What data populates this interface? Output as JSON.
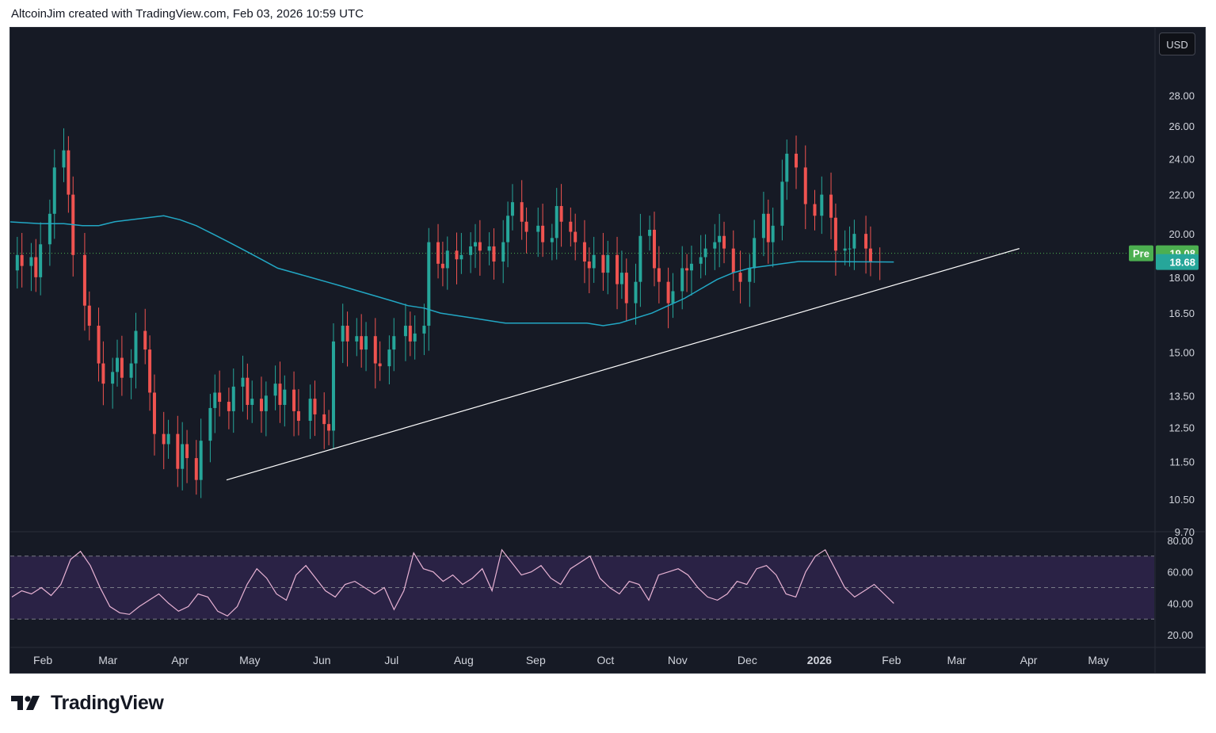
{
  "header": {
    "caption": "AltcoinJim created with TradingView.com, Feb 03, 2026 10:59 UTC"
  },
  "toolbar": {
    "currency_label": "USD"
  },
  "footer": {
    "brand": "TradingView"
  },
  "colors": {
    "background": "#161a25",
    "up_candle": "#26a69a",
    "down_candle": "#ef5350",
    "moving_average": "#22a7c4",
    "trendline": "#ffffff",
    "rsi_line": "#e8b3d4",
    "rsi_band": "#2a2245",
    "pre_badge": "#4caf50",
    "last_badge": "#26a69a",
    "axis_text": "#d1d4dc"
  },
  "chart_data": [
    {
      "type": "candlestick",
      "scale": "log",
      "x_range": [
        "2025-01-18",
        "2026-05-25"
      ],
      "ylim": [
        9.7,
        33
      ],
      "y_ticks": [
        "28.00",
        "26.00",
        "24.00",
        "22.00",
        "20.00",
        "18.00",
        "16.50",
        "15.00",
        "13.50",
        "12.50",
        "11.50",
        "10.50",
        "9.70"
      ],
      "x_ticks": [
        {
          "date": "2025-02-01",
          "label": "Feb",
          "bold": false
        },
        {
          "date": "2025-03-01",
          "label": "Mar",
          "bold": false
        },
        {
          "date": "2025-04-01",
          "label": "Apr",
          "bold": false
        },
        {
          "date": "2025-05-01",
          "label": "May",
          "bold": false
        },
        {
          "date": "2025-06-01",
          "label": "Jun",
          "bold": false
        },
        {
          "date": "2025-07-01",
          "label": "Jul",
          "bold": false
        },
        {
          "date": "2025-08-01",
          "label": "Aug",
          "bold": false
        },
        {
          "date": "2025-09-01",
          "label": "Sep",
          "bold": false
        },
        {
          "date": "2025-10-01",
          "label": "Oct",
          "bold": false
        },
        {
          "date": "2025-11-01",
          "label": "Nov",
          "bold": false
        },
        {
          "date": "2025-12-01",
          "label": "Dec",
          "bold": false
        },
        {
          "date": "2026-01-01",
          "label": "2026",
          "bold": true
        },
        {
          "date": "2026-02-01",
          "label": "Feb",
          "bold": false
        },
        {
          "date": "2026-03-01",
          "label": "Mar",
          "bold": false
        },
        {
          "date": "2026-04-01",
          "label": "Apr",
          "bold": false
        },
        {
          "date": "2026-05-01",
          "label": "May",
          "bold": false
        }
      ],
      "candle_dates": [
        "2025-01-17",
        "2025-01-21",
        "2025-01-23",
        "2025-01-27",
        "2025-01-29",
        "2025-01-31",
        "2025-02-04",
        "2025-02-06",
        "2025-02-10",
        "2025-02-12",
        "2025-02-14",
        "2025-02-19",
        "2025-02-21",
        "2025-02-25",
        "2025-02-27",
        "2025-03-03",
        "2025-03-05",
        "2025-03-07",
        "2025-03-11",
        "2025-03-13",
        "2025-03-17",
        "2025-03-19",
        "2025-03-21",
        "2025-03-25",
        "2025-03-27",
        "2025-03-31",
        "2025-04-02",
        "2025-04-04",
        "2025-04-08",
        "2025-04-10",
        "2025-04-14",
        "2025-04-16",
        "2025-04-18",
        "2025-04-22",
        "2025-04-24",
        "2025-04-28",
        "2025-04-30",
        "2025-05-02",
        "2025-05-06",
        "2025-05-08",
        "2025-05-12",
        "2025-05-14",
        "2025-05-16",
        "2025-05-20",
        "2025-05-22",
        "2025-05-27",
        "2025-05-29",
        "2025-06-02",
        "2025-06-04",
        "2025-06-06",
        "2025-06-10",
        "2025-06-12",
        "2025-06-16",
        "2025-06-18",
        "2025-06-20",
        "2025-06-24",
        "2025-06-26",
        "2025-06-30",
        "2025-07-02",
        "2025-07-07",
        "2025-07-09",
        "2025-07-11",
        "2025-07-15",
        "2025-07-17",
        "2025-07-21",
        "2025-07-23",
        "2025-07-25",
        "2025-07-29",
        "2025-07-31",
        "2025-08-04",
        "2025-08-06",
        "2025-08-08",
        "2025-08-12",
        "2025-08-14",
        "2025-08-18",
        "2025-08-20",
        "2025-08-22",
        "2025-08-26",
        "2025-08-28",
        "2025-09-02",
        "2025-09-04",
        "2025-09-08",
        "2025-09-10",
        "2025-09-12",
        "2025-09-16",
        "2025-09-18",
        "2025-09-22",
        "2025-09-24",
        "2025-09-26",
        "2025-09-30",
        "2025-10-02",
        "2025-10-06",
        "2025-10-08",
        "2025-10-10",
        "2025-10-14",
        "2025-10-16",
        "2025-10-20",
        "2025-10-22",
        "2025-10-24",
        "2025-10-28",
        "2025-10-30",
        "2025-11-03",
        "2025-11-05",
        "2025-11-07",
        "2025-11-11",
        "2025-11-13",
        "2025-11-17",
        "2025-11-19",
        "2025-11-21",
        "2025-11-25",
        "2025-11-28",
        "2025-12-02",
        "2025-12-04",
        "2025-12-08",
        "2025-12-10",
        "2025-12-12",
        "2025-12-16",
        "2025-12-18",
        "2025-12-22",
        "2025-12-26",
        "2025-12-30",
        "2026-01-02",
        "2026-01-06",
        "2026-01-08",
        "2026-01-12",
        "2026-01-14",
        "2026-01-16",
        "2026-01-21",
        "2026-01-23",
        "2026-01-27",
        "2026-01-29",
        "2026-02-02"
      ],
      "candle_close": [
        18.3,
        19.0,
        18.5,
        18.9,
        18.0,
        19.5,
        21.0,
        23.5,
        24.5,
        22.0,
        19.0,
        16.8,
        16.0,
        14.6,
        13.9,
        14.3,
        14.8,
        14.1,
        14.6,
        15.8,
        15.1,
        13.6,
        12.3,
        12.0,
        12.3,
        11.3,
        12.0,
        11.6,
        11.0,
        12.1,
        13.1,
        13.6,
        13.3,
        13.0,
        13.8,
        14.1,
        13.2,
        13.4,
        13.0,
        13.5,
        13.9,
        13.2,
        13.7,
        13.0,
        12.7,
        13.4,
        12.9,
        12.6,
        12.4,
        15.4,
        16.0,
        15.4,
        15.6,
        15.1,
        15.6,
        14.6,
        14.5,
        15.1,
        15.6,
        16.0,
        15.4,
        15.7,
        16.0,
        19.6,
        18.6,
        18.4,
        19.2,
        18.8,
        19.0,
        19.4,
        19.6,
        19.2,
        19.4,
        18.7,
        19.6,
        20.9,
        21.6,
        20.6,
        20.1,
        20.4,
        19.6,
        19.8,
        21.4,
        20.6,
        20.1,
        19.6,
        18.7,
        18.4,
        19.0,
        18.2,
        19.0,
        17.7,
        18.2,
        16.9,
        17.8,
        19.9,
        20.2,
        18.4,
        17.8,
        16.9,
        17.4,
        18.4,
        18.3,
        18.6,
        18.9,
        19.3,
        19.6,
        19.9,
        19.3,
        18.2,
        17.8,
        18.4,
        19.8,
        21.0,
        19.6,
        20.4,
        22.7,
        24.3,
        23.5,
        21.5,
        20.9,
        22.0,
        20.8,
        19.2,
        19.3,
        19.3,
        20.0,
        19.3,
        18.7,
        18.68
      ],
      "ma_values": [
        20.6,
        20.5,
        20.5,
        20.4,
        20.4,
        20.6,
        20.7,
        20.8,
        20.9,
        20.7,
        20.4,
        20.0,
        19.6,
        19.2,
        18.8,
        18.4,
        18.2,
        18.0,
        17.8,
        17.6,
        17.4,
        17.2,
        17.0,
        16.8,
        16.7,
        16.5,
        16.4,
        16.3,
        16.2,
        16.1,
        16.1,
        16.1,
        16.1,
        16.1,
        16.1,
        16.0,
        16.1,
        16.3,
        16.5,
        16.8,
        17.1,
        17.5,
        17.9,
        18.2,
        18.4,
        18.5,
        18.6,
        18.7,
        18.68
      ],
      "ma_dates": [
        "2025-01-17",
        "2025-01-31",
        "2025-02-10",
        "2025-02-18",
        "2025-02-25",
        "2025-03-04",
        "2025-03-11",
        "2025-03-18",
        "2025-03-25",
        "2025-04-01",
        "2025-04-08",
        "2025-04-15",
        "2025-04-22",
        "2025-04-29",
        "2025-05-06",
        "2025-05-13",
        "2025-05-20",
        "2025-05-27",
        "2025-06-03",
        "2025-06-10",
        "2025-06-17",
        "2025-06-24",
        "2025-07-01",
        "2025-07-08",
        "2025-07-15",
        "2025-07-22",
        "2025-07-29",
        "2025-08-05",
        "2025-08-12",
        "2025-08-19",
        "2025-08-26",
        "2025-09-02",
        "2025-09-09",
        "2025-09-16",
        "2025-09-23",
        "2025-09-30",
        "2025-10-07",
        "2025-10-14",
        "2025-10-21",
        "2025-10-28",
        "2025-11-04",
        "2025-11-11",
        "2025-11-18",
        "2025-11-25",
        "2025-12-02",
        "2025-12-09",
        "2025-12-16",
        "2025-12-23",
        "2026-02-02"
      ],
      "trendline": {
        "from": {
          "date": "2025-04-21",
          "price": 11.0
        },
        "to": {
          "date": "2026-03-28",
          "price": 19.3
        }
      },
      "pre_price_line": 19.08,
      "badges": [
        {
          "label": "Pre",
          "value": "19.08",
          "price": 19.08
        },
        {
          "value": "18.68",
          "price": 18.68
        }
      ]
    },
    {
      "type": "line",
      "series": [
        {
          "values": [
            44,
            48,
            46,
            50,
            45,
            52,
            68,
            73,
            64,
            50,
            38,
            34,
            33,
            38,
            42,
            46,
            40,
            35,
            38,
            46,
            44,
            35,
            32,
            38,
            52,
            62,
            56,
            46,
            42,
            58,
            64,
            56,
            48,
            44,
            52,
            54,
            50,
            46,
            50,
            36,
            48,
            72,
            62,
            60,
            54,
            58,
            52,
            56,
            62,
            48,
            74,
            66,
            58,
            60,
            64,
            56,
            52,
            62,
            66,
            70,
            56,
            50,
            46,
            54,
            52,
            42,
            58,
            60,
            62,
            58,
            50,
            44,
            42,
            46,
            54,
            52,
            62,
            64,
            58,
            46,
            44,
            60,
            70,
            74,
            62,
            50,
            44,
            48,
            52,
            46,
            40
          ]
        }
      ],
      "ylim": [
        12,
        85
      ],
      "y_ticks": [
        "80.00",
        "60.00",
        "40.00",
        "20.00"
      ],
      "band": [
        30,
        70
      ],
      "mid_line": 50
    }
  ]
}
